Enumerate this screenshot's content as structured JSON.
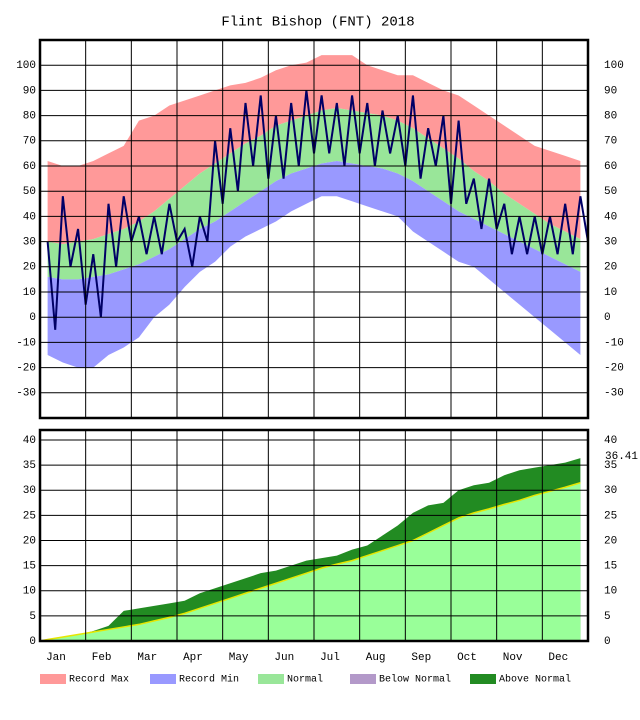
{
  "chart_data": [
    {
      "type": "band",
      "title": "Flint Bishop (FNT) 2018",
      "categories": [
        "Jan",
        "Feb",
        "Mar",
        "Apr",
        "May",
        "Jun",
        "Jul",
        "Aug",
        "Sep",
        "Oct",
        "Nov",
        "Dec"
      ],
      "ylim": [
        -40,
        110
      ],
      "yticks": [
        -30,
        -20,
        -10,
        0,
        10,
        20,
        30,
        40,
        50,
        60,
        70,
        80,
        90,
        100
      ],
      "grid": true,
      "series": [
        {
          "name": "Record Max",
          "color": "#ff9999",
          "values": [
            [
              62,
              60,
              60
            ],
            [
              62,
              65,
              68
            ],
            [
              78,
              80,
              84
            ],
            [
              86,
              88,
              90
            ],
            [
              92,
              93,
              95
            ],
            [
              98,
              100,
              101
            ],
            [
              104,
              104,
              104
            ],
            [
              100,
              98,
              96
            ],
            [
              96,
              93,
              90
            ],
            [
              88,
              84,
              80
            ],
            [
              76,
              72,
              68
            ],
            [
              66,
              64,
              62
            ]
          ]
        },
        {
          "name": "Normal",
          "color": "#99e699",
          "values": [
            [
              30,
              29,
              30
            ],
            [
              31,
              33,
              35
            ],
            [
              38,
              42,
              47
            ],
            [
              52,
              57,
              61
            ],
            [
              65,
              69,
              72
            ],
            [
              76,
              78,
              80
            ],
            [
              82,
              83,
              82
            ],
            [
              81,
              80,
              78
            ],
            [
              75,
              71,
              67
            ],
            [
              63,
              58,
              54
            ],
            [
              49,
              45,
              41
            ],
            [
              37,
              34,
              31
            ]
          ],
          "low": [
            [
              16,
              15,
              15
            ],
            [
              16,
              17,
              19
            ],
            [
              21,
              24,
              27
            ],
            [
              31,
              35,
              38
            ],
            [
              42,
              46,
              50
            ],
            [
              54,
              57,
              59
            ],
            [
              61,
              62,
              61
            ],
            [
              60,
              59,
              57
            ],
            [
              54,
              50,
              46
            ],
            [
              42,
              39,
              36
            ],
            [
              33,
              30,
              27
            ],
            [
              24,
              21,
              18
            ]
          ]
        },
        {
          "name": "Record Min",
          "color": "#9999ff",
          "values": [
            [
              -15,
              -18,
              -20
            ],
            [
              -20,
              -15,
              -12
            ],
            [
              -8,
              0,
              5
            ],
            [
              12,
              18,
              22
            ],
            [
              28,
              32,
              35
            ],
            [
              38,
              42,
              45
            ],
            [
              48,
              48,
              46
            ],
            [
              44,
              42,
              40
            ],
            [
              34,
              30,
              26
            ],
            [
              22,
              20,
              15
            ],
            [
              10,
              5,
              0
            ],
            [
              -5,
              -10,
              -15
            ]
          ]
        },
        {
          "color": "#000066",
          "values": [
            [
              30,
              48,
              35
            ],
            [
              25,
              45,
              48
            ],
            [
              40,
              40,
              45
            ],
            [
              35,
              40,
              70
            ],
            [
              75,
              85,
              88
            ],
            [
              80,
              85,
              90
            ],
            [
              88,
              85,
              88
            ],
            [
              85,
              82,
              80
            ],
            [
              88,
              75,
              80
            ],
            [
              78,
              55,
              55
            ],
            [
              45,
              40,
              40
            ],
            [
              40,
              45,
              48
            ]
          ],
          "low": [
            [
              -5,
              20,
              5
            ],
            [
              0,
              20,
              30
            ],
            [
              25,
              25,
              30
            ],
            [
              20,
              30,
              45
            ],
            [
              50,
              60,
              55
            ],
            [
              55,
              60,
              65
            ],
            [
              65,
              60,
              65
            ],
            [
              60,
              65,
              60
            ],
            [
              55,
              60,
              45
            ],
            [
              45,
              35,
              35
            ],
            [
              25,
              25,
              25
            ],
            [
              25,
              25,
              30
            ]
          ]
        }
      ]
    },
    {
      "type": "cumulative",
      "categories": [
        "Jan",
        "Feb",
        "Mar",
        "Apr",
        "May",
        "Jun",
        "Jul",
        "Aug",
        "Sep",
        "Oct",
        "Nov",
        "Dec"
      ],
      "ylim": [
        0,
        42
      ],
      "yticks": [
        0,
        5,
        10,
        15,
        20,
        25,
        30,
        35,
        40
      ],
      "grid": true,
      "series": [
        {
          "name": "Normal",
          "color": "#99ff99",
          "values": [
            [
              0.3,
              0.8,
              1.3
            ],
            [
              1.8,
              2.3,
              2.8
            ],
            [
              3.3,
              4.0,
              4.7
            ],
            [
              5.5,
              6.5,
              7.5
            ],
            [
              8.5,
              9.5,
              10.5
            ],
            [
              11.5,
              12.5,
              13.5
            ],
            [
              14.5,
              15.3,
              16
            ],
            [
              17,
              18,
              19
            ],
            [
              20,
              21.5,
              23
            ],
            [
              24.5,
              25.5,
              26.3
            ],
            [
              27.2,
              28,
              29
            ],
            [
              29.8,
              30.6,
              31.5
            ]
          ]
        },
        {
          "name": "Above Normal",
          "color": "#228b22",
          "values": [
            [
              0.3,
              0.6,
              1.2
            ],
            [
              2,
              3,
              6
            ],
            [
              6.5,
              7,
              7.5
            ],
            [
              8,
              9.5,
              10.5
            ],
            [
              11.5,
              12.5,
              13.5
            ],
            [
              14,
              15,
              16
            ],
            [
              16.5,
              17,
              18.2
            ],
            [
              19,
              21,
              23
            ],
            [
              25.5,
              27,
              27.5
            ],
            [
              30,
              31,
              31.5
            ],
            [
              33,
              34,
              34.5
            ],
            [
              35,
              35.5,
              36.41
            ]
          ]
        }
      ]
    }
  ],
  "legend": [
    {
      "name": "Record Max",
      "color": "#ff9999"
    },
    {
      "name": "Record Min",
      "color": "#9999ff"
    },
    {
      "name": "Normal",
      "color": "#99e699"
    },
    {
      "name": "Below Normal",
      "color": "#b399c9"
    },
    {
      "name": "Above Normal",
      "color": "#228b22"
    }
  ]
}
